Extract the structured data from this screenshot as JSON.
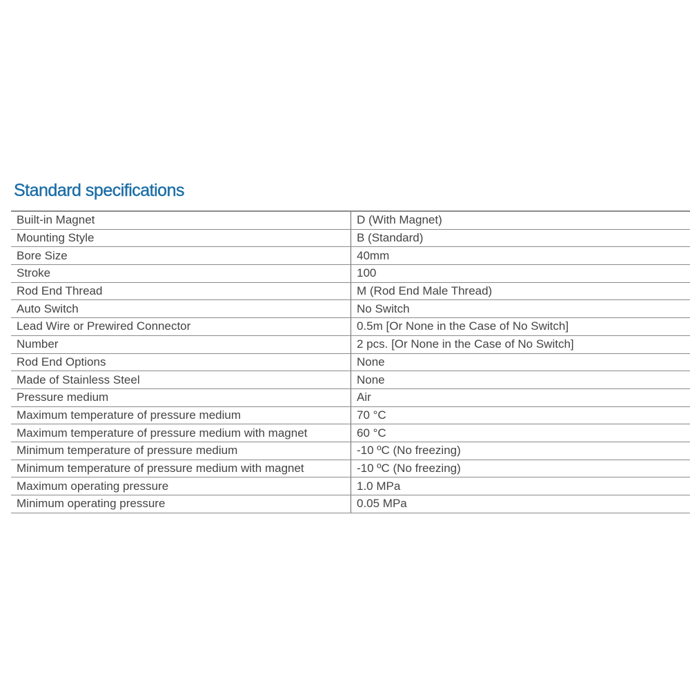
{
  "title": "Standard specifications",
  "colors": {
    "title": "#1c6ea6",
    "text": "#444444",
    "rule": "#8a8a8a"
  },
  "specs": [
    {
      "label": "Built-in Magnet",
      "value": "D (With Magnet)"
    },
    {
      "label": "Mounting Style",
      "value": "B (Standard)"
    },
    {
      "label": "Bore Size",
      "value": "40mm"
    },
    {
      "label": "Stroke",
      "value": "100"
    },
    {
      "label": "Rod End Thread",
      "value": "M (Rod End Male Thread)"
    },
    {
      "label": "Auto Switch",
      "value": "No Switch"
    },
    {
      "label": "Lead Wire or Prewired Connector",
      "value": "0.5m [Or None in the Case of No Switch]"
    },
    {
      "label": "Number",
      "value": "2 pcs. [Or None in the Case of No Switch]"
    },
    {
      "label": "Rod End Options",
      "value": "None"
    },
    {
      "label": "Made of Stainless Steel",
      "value": "None"
    },
    {
      "label": "Pressure medium",
      "value": "Air"
    },
    {
      "label": "Maximum temperature of pressure medium",
      "value": "70 °C"
    },
    {
      "label": "Maximum temperature of pressure medium with magnet",
      "value": "60 °C"
    },
    {
      "label": "Minimum temperature of pressure medium",
      "value": "-10 ºC (No freezing)"
    },
    {
      "label": "Minimum temperature of pressure medium with magnet",
      "value": "-10 ºC (No freezing)"
    },
    {
      "label": "Maximum operating pressure",
      "value": "1.0 MPa"
    },
    {
      "label": "Minimum operating pressure",
      "value": "0.05 MPa"
    }
  ]
}
